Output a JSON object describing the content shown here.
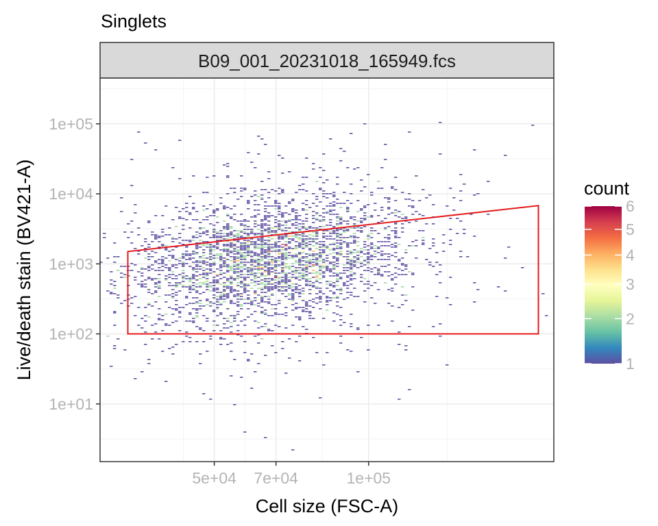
{
  "colors": {
    "gate": "#e41a1c",
    "panel_border": "#333333",
    "strip_fill": "#d9d9d9",
    "grid": "#ebebeb",
    "palette_spectral": [
      "#5e4fa2",
      "#3288bd",
      "#66c2a5",
      "#abdda4",
      "#e6f598",
      "#ffffbf",
      "#fee08b",
      "#fdae61",
      "#f46d43",
      "#d53e4f",
      "#9e0142"
    ]
  },
  "chart_data": {
    "type": "heatmap",
    "title": "Singlets",
    "facet_label": "B09_001_20231018_165949.fcs",
    "xlabel": "Cell size (FSC-A)",
    "ylabel": "Live/death stain (BV421-A)",
    "x_scale": "linear",
    "y_scale": "log10",
    "xlim": [
      13000,
      160000
    ],
    "ylim": [
      1.5,
      450000
    ],
    "x_ticks": [
      {
        "value": 50000,
        "label": "5e+04"
      },
      {
        "value": 70000,
        "label": "7e+04"
      },
      {
        "value": 100000,
        "label": "1e+05"
      }
    ],
    "y_ticks": [
      {
        "value": 10,
        "label": "1e+01"
      },
      {
        "value": 100,
        "label": "1e+02"
      },
      {
        "value": 1000,
        "label": "1e+03"
      },
      {
        "value": 10000,
        "label": "1e+04"
      },
      {
        "value": 100000,
        "label": "1e+05"
      }
    ],
    "grid": true,
    "gate": {
      "name": "Singlets",
      "points": [
        [
          22000,
          1500
        ],
        [
          155000,
          6800
        ],
        [
          155000,
          100
        ],
        [
          22000,
          100
        ]
      ]
    },
    "density_core": {
      "x_center": 68000,
      "y_log_center": 3.05,
      "x_sd": 22000,
      "y_log_sd": 0.42,
      "slope_log_per_x": 5.2e-06
    },
    "legend": {
      "title": "count",
      "position": "right",
      "scale": "sqrt",
      "range": [
        1,
        6
      ],
      "labels": [
        "6",
        "5",
        "4",
        "3",
        "2",
        "1"
      ]
    }
  }
}
